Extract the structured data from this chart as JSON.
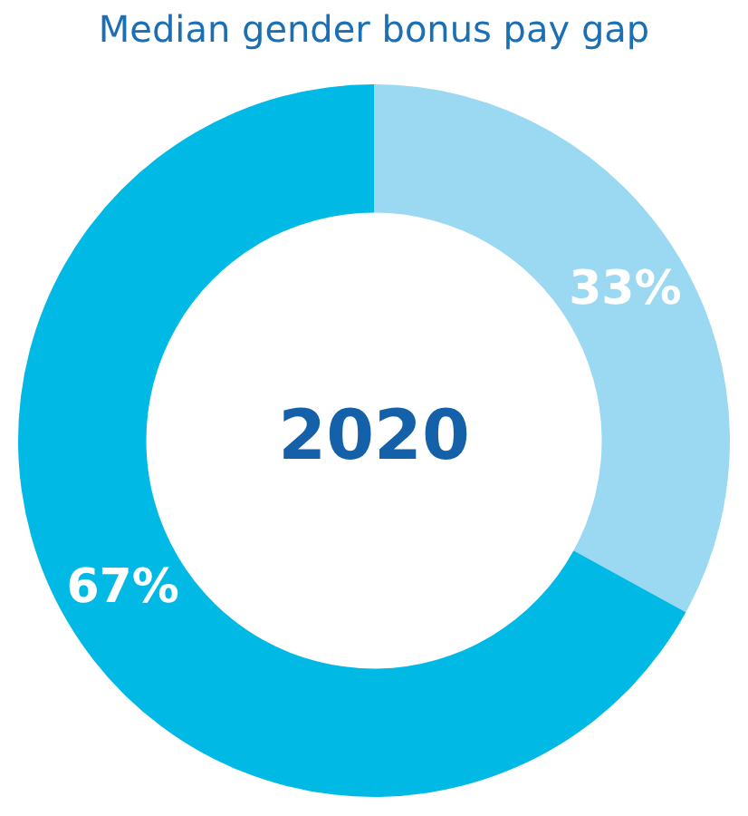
{
  "chart_data": {
    "type": "donut",
    "title": "Median gender bonus pay gap",
    "categories": [
      null,
      null
    ],
    "values": [
      33,
      67
    ],
    "colors": [
      "#9ad9f1",
      "#00b9e4"
    ],
    "value_labels": [
      "33%",
      "67%"
    ],
    "annotations": [
      "2020"
    ],
    "legend": false
  }
}
